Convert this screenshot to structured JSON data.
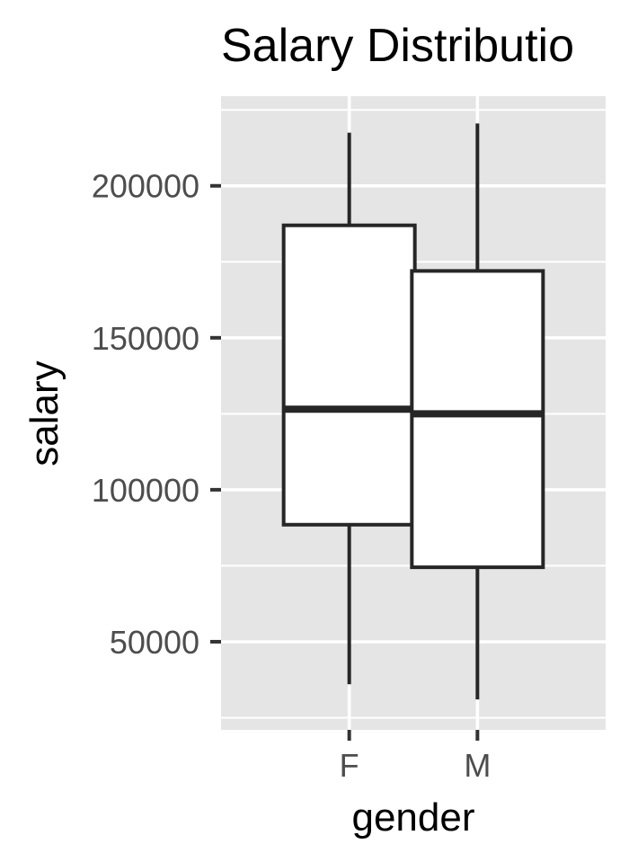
{
  "chart_data": {
    "type": "boxplot",
    "title": "Salary Distributio",
    "xlabel": "gender",
    "ylabel": "salary",
    "categories": [
      "F",
      "M"
    ],
    "boxes": [
      {
        "category": "F",
        "whisker_low": 36000,
        "q1": 88500,
        "median": 126500,
        "q3": 187000,
        "whisker_high": 217500
      },
      {
        "category": "M",
        "whisker_low": 31000,
        "q1": 74500,
        "median": 125000,
        "q3": 172000,
        "whisker_high": 220500
      }
    ],
    "ylim": [
      21000,
      229500
    ],
    "yticks": [
      50000,
      100000,
      150000,
      200000
    ],
    "ytick_labels": [
      "50000",
      "100000",
      "150000",
      "200000"
    ],
    "grid": true,
    "colors": {
      "panel_background": "#e5e5e5",
      "grid_line": "#ffffff",
      "box_fill": "#ffffff",
      "box_stroke": "#262626",
      "tick_mark": "#333333",
      "tick_label": "#4d4d4d",
      "text": "#000000"
    }
  }
}
